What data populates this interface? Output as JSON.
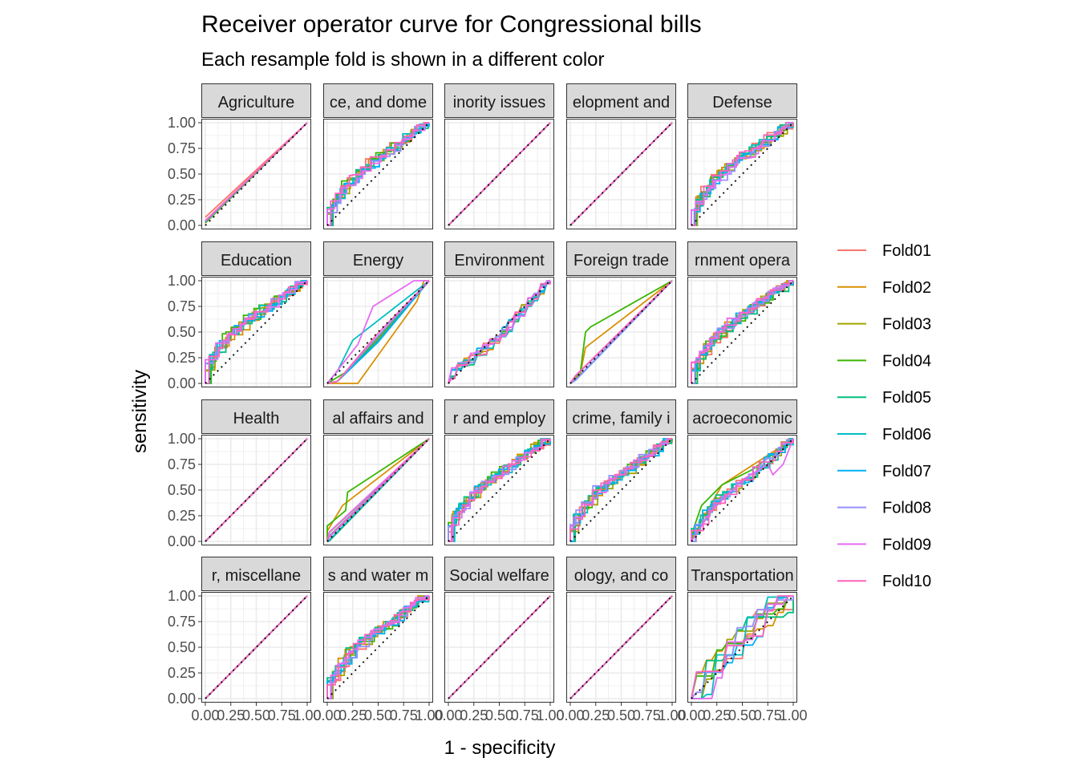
{
  "chart_data": {
    "type": "line",
    "title": "Receiver operator curve for Congressional bills",
    "subtitle": "Each resample fold is shown in a different color",
    "xlabel": "1 - specificity",
    "ylabel": "sensitivity",
    "xlim": [
      0,
      1
    ],
    "ylim": [
      0,
      1
    ],
    "ticks": [
      "0.00",
      "0.25",
      "0.50",
      "0.75",
      "1.00"
    ],
    "grid": true,
    "reference_line": "diagonal dotted",
    "legend_position": "right",
    "series": [
      {
        "name": "Fold01",
        "color": "#F8766D"
      },
      {
        "name": "Fold02",
        "color": "#D89000"
      },
      {
        "name": "Fold03",
        "color": "#A3A500"
      },
      {
        "name": "Fold04",
        "color": "#39B600"
      },
      {
        "name": "Fold05",
        "color": "#00BF7D"
      },
      {
        "name": "Fold06",
        "color": "#00BFC4"
      },
      {
        "name": "Fold07",
        "color": "#00B0F6"
      },
      {
        "name": "Fold08",
        "color": "#9590FF"
      },
      {
        "name": "Fold09",
        "color": "#E76BF3"
      },
      {
        "name": "Fold10",
        "color": "#FF62BC"
      }
    ],
    "facets": [
      {
        "label": "Agriculture",
        "shape": "agri"
      },
      {
        "label": "ce, and dome",
        "shape": "concave"
      },
      {
        "label": "inority issues",
        "shape": "diag"
      },
      {
        "label": "elopment and",
        "shape": "diag"
      },
      {
        "label": "Defense",
        "shape": "concave"
      },
      {
        "label": "Education",
        "shape": "concave"
      },
      {
        "label": "Energy",
        "shape": "energy"
      },
      {
        "label": "Environment",
        "shape": "s-curve"
      },
      {
        "label": "Foreign trade",
        "shape": "trade"
      },
      {
        "label": "rnment opera",
        "shape": "concave"
      },
      {
        "label": "Health",
        "shape": "diag"
      },
      {
        "label": "al affairs and",
        "shape": "intl"
      },
      {
        "label": "r and employ",
        "shape": "concave"
      },
      {
        "label": "crime, family i",
        "shape": "concave"
      },
      {
        "label": "acroeconomic",
        "shape": "macro"
      },
      {
        "label": "r, miscellane",
        "shape": "diag"
      },
      {
        "label": "s and water m",
        "shape": "concave"
      },
      {
        "label": "Social welfare",
        "shape": "diag"
      },
      {
        "label": "ology, and co",
        "shape": "diag"
      },
      {
        "label": "Transportation",
        "shape": "transport"
      }
    ]
  }
}
